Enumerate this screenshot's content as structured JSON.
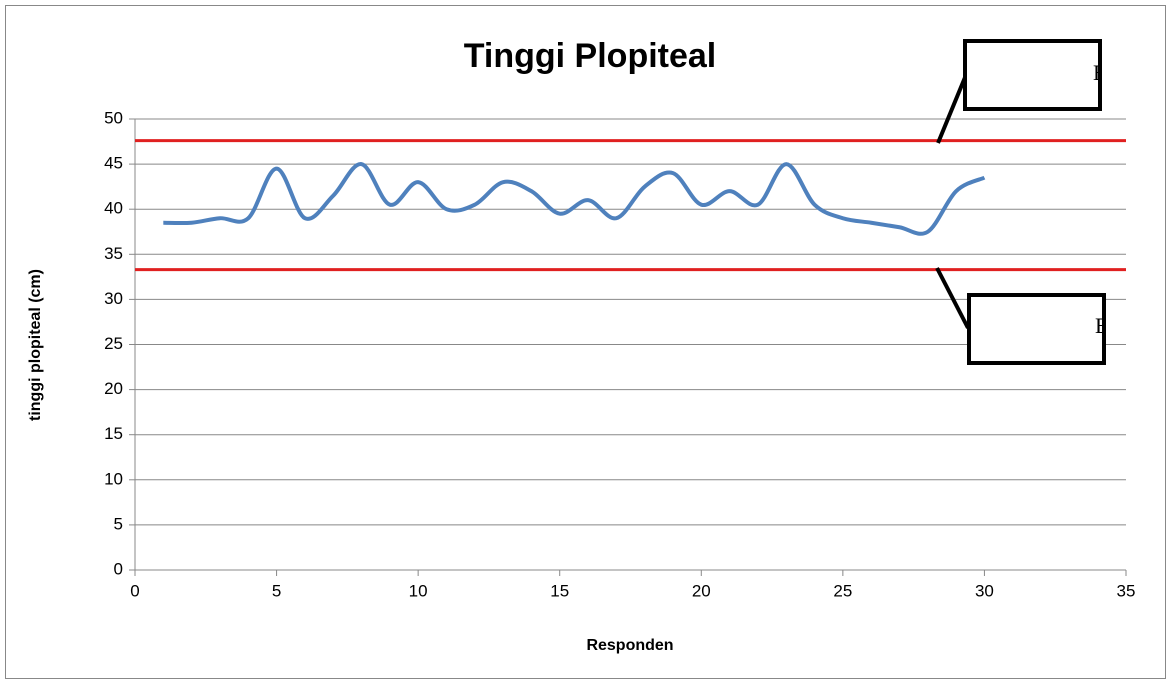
{
  "chart_data": {
    "type": "line",
    "title": "Tinggi Plopiteal",
    "x_label": "Responden",
    "y_label": "tinggi plopiteal (cm)",
    "x": [
      1,
      2,
      3,
      4,
      5,
      6,
      7,
      8,
      9,
      10,
      11,
      12,
      13,
      14,
      15,
      16,
      17,
      18,
      19,
      20,
      21,
      22,
      23,
      24,
      25,
      26,
      27,
      28,
      29,
      30
    ],
    "values": [
      38.5,
      38.5,
      39,
      39,
      44.5,
      39,
      41.5,
      45,
      40.5,
      43,
      40,
      40.5,
      43,
      42,
      39.5,
      41,
      39,
      42.5,
      44,
      40.5,
      42,
      40.5,
      45,
      40.5,
      39,
      38.5,
      38,
      37.5,
      42,
      43.5
    ],
    "color": "#4f81bd",
    "reference_lines": [
      47.6,
      33.3
    ],
    "reference_color": "#e02020",
    "annotations": [
      "E",
      "E"
    ],
    "xlim": [
      0,
      35
    ],
    "xticks": [
      0,
      5,
      10,
      15,
      20,
      25,
      30,
      35
    ],
    "ylim": [
      0,
      50
    ],
    "yticks": [
      0,
      5,
      10,
      15,
      20,
      25,
      30,
      35,
      40,
      45,
      50
    ],
    "grid": true
  }
}
